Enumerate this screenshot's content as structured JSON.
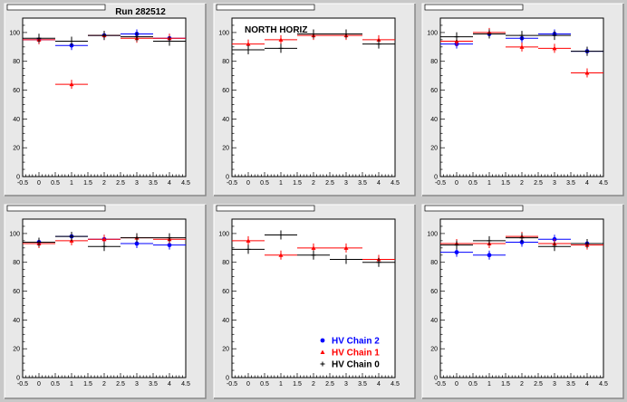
{
  "window": {
    "background": "#c8c8c8",
    "pad_background": "#e8e8e8",
    "frame_background": "#ffffff"
  },
  "legend_entries": [
    {
      "label": "HV Chain 2",
      "color": "#0000ff",
      "marker": "circle"
    },
    {
      "label": "HV Chain 1",
      "color": "#ff0000",
      "marker": "triangle"
    },
    {
      "label": "HV Chain 0",
      "color": "#000000",
      "marker": "cross"
    }
  ],
  "chart_data": [
    {
      "type": "scatter",
      "title": "Run 282512",
      "annotation": "",
      "xlim": [
        -0.5,
        4.5
      ],
      "ylim": [
        0,
        110
      ],
      "x_ticks": [
        "-0.5",
        "0",
        "0.5",
        "1",
        "1.5",
        "2",
        "2.5",
        "3",
        "3.5",
        "4",
        "4.5"
      ],
      "y_ticks": [
        "0",
        "20",
        "40",
        "60",
        "80",
        "100"
      ],
      "series": [
        {
          "name": "HV Chain 2",
          "color": "#0000ff",
          "points": [
            [
              0,
              95
            ],
            [
              1,
              91
            ],
            [
              2,
              98
            ],
            [
              3,
              99
            ],
            [
              4,
              96
            ]
          ]
        },
        {
          "name": "HV Chain 1",
          "color": "#ff0000",
          "points": [
            [
              0,
              95
            ],
            [
              1,
              64
            ],
            [
              2,
              98
            ],
            [
              3,
              96
            ],
            [
              4,
              96
            ]
          ]
        },
        {
          "name": "HV Chain 0",
          "color": "#000000",
          "points": [
            [
              0,
              96
            ],
            [
              1,
              94
            ],
            [
              2,
              98
            ],
            [
              3,
              97
            ],
            [
              4,
              94
            ]
          ]
        }
      ],
      "legend": false
    },
    {
      "type": "scatter",
      "title": "",
      "annotation": "NORTH HORIZ",
      "xlim": [
        -0.5,
        4.5
      ],
      "ylim": [
        0,
        110
      ],
      "x_ticks": [
        "-0.5",
        "0",
        "0.5",
        "1",
        "1.5",
        "2",
        "2.5",
        "3",
        "3.5",
        "4",
        "4.5"
      ],
      "y_ticks": [
        "0",
        "20",
        "40",
        "60",
        "80",
        "100"
      ],
      "series": [
        {
          "name": "HV Chain 2",
          "color": "#0000ff",
          "points": []
        },
        {
          "name": "HV Chain 1",
          "color": "#ff0000",
          "points": [
            [
              0,
              92
            ],
            [
              1,
              95
            ],
            [
              2,
              98
            ],
            [
              3,
              98
            ],
            [
              4,
              95
            ]
          ]
        },
        {
          "name": "HV Chain 0",
          "color": "#000000",
          "points": [
            [
              0,
              88
            ],
            [
              1,
              89
            ],
            [
              2,
              99
            ],
            [
              3,
              99
            ],
            [
              4,
              92
            ]
          ]
        }
      ],
      "legend": false
    },
    {
      "type": "scatter",
      "title": "",
      "annotation": "",
      "xlim": [
        -0.5,
        4.5
      ],
      "ylim": [
        0,
        110
      ],
      "x_ticks": [
        "-0.5",
        "0",
        "0.5",
        "1",
        "1.5",
        "2",
        "2.5",
        "3",
        "3.5",
        "4",
        "4.5"
      ],
      "y_ticks": [
        "0",
        "20",
        "40",
        "60",
        "80",
        "100"
      ],
      "series": [
        {
          "name": "HV Chain 2",
          "color": "#0000ff",
          "points": [
            [
              0,
              92
            ],
            [
              1,
              99
            ],
            [
              2,
              96
            ],
            [
              3,
              99
            ],
            [
              4,
              87
            ]
          ]
        },
        {
          "name": "HV Chain 1",
          "color": "#ff0000",
          "points": [
            [
              0,
              94
            ],
            [
              1,
              100
            ],
            [
              2,
              90
            ],
            [
              3,
              89
            ],
            [
              4,
              72
            ]
          ]
        },
        {
          "name": "HV Chain 0",
          "color": "#000000",
          "points": [
            [
              0,
              97
            ],
            [
              1,
              99
            ],
            [
              2,
              98
            ],
            [
              3,
              98
            ],
            [
              4,
              87
            ]
          ]
        }
      ],
      "legend": false
    },
    {
      "type": "scatter",
      "title": "",
      "annotation": "",
      "xlim": [
        -0.5,
        4.5
      ],
      "ylim": [
        0,
        110
      ],
      "x_ticks": [
        "-0.5",
        "0",
        "0.5",
        "1",
        "1.5",
        "2",
        "2.5",
        "3",
        "3.5",
        "4",
        "4.5"
      ],
      "y_ticks": [
        "0",
        "20",
        "40",
        "60",
        "80",
        "100"
      ],
      "series": [
        {
          "name": "HV Chain 2",
          "color": "#0000ff",
          "points": [
            [
              0,
              94
            ],
            [
              1,
              98
            ],
            [
              2,
              96
            ],
            [
              3,
              93
            ],
            [
              4,
              92
            ]
          ]
        },
        {
          "name": "HV Chain 1",
          "color": "#ff0000",
          "points": [
            [
              0,
              93
            ],
            [
              1,
              95
            ],
            [
              2,
              96
            ],
            [
              3,
              97
            ],
            [
              4,
              96
            ]
          ]
        },
        {
          "name": "HV Chain 0",
          "color": "#000000",
          "points": [
            [
              0,
              94
            ],
            [
              1,
              98
            ],
            [
              2,
              91
            ],
            [
              3,
              97
            ],
            [
              4,
              97
            ]
          ]
        }
      ],
      "legend": false
    },
    {
      "type": "scatter",
      "title": "",
      "annotation": "",
      "xlim": [
        -0.5,
        4.5
      ],
      "ylim": [
        0,
        110
      ],
      "x_ticks": [
        "-0.5",
        "0",
        "0.5",
        "1",
        "1.5",
        "2",
        "2.5",
        "3",
        "3.5",
        "4",
        "4.5"
      ],
      "y_ticks": [
        "0",
        "20",
        "40",
        "60",
        "80",
        "100"
      ],
      "series": [
        {
          "name": "HV Chain 2",
          "color": "#0000ff",
          "points": []
        },
        {
          "name": "HV Chain 1",
          "color": "#ff0000",
          "points": [
            [
              0,
              95
            ],
            [
              1,
              85
            ],
            [
              2,
              90
            ],
            [
              3,
              90
            ],
            [
              4,
              82
            ]
          ]
        },
        {
          "name": "HV Chain 0",
          "color": "#000000",
          "points": [
            [
              0,
              89
            ],
            [
              1,
              99
            ],
            [
              2,
              85
            ],
            [
              3,
              82
            ],
            [
              4,
              80
            ]
          ]
        }
      ],
      "legend": true
    },
    {
      "type": "scatter",
      "title": "",
      "annotation": "",
      "xlim": [
        -0.5,
        4.5
      ],
      "ylim": [
        0,
        110
      ],
      "x_ticks": [
        "-0.5",
        "0",
        "0.5",
        "1",
        "1.5",
        "2",
        "2.5",
        "3",
        "3.5",
        "4",
        "4.5"
      ],
      "y_ticks": [
        "0",
        "20",
        "40",
        "60",
        "80",
        "100"
      ],
      "series": [
        {
          "name": "HV Chain 2",
          "color": "#0000ff",
          "points": [
            [
              0,
              87
            ],
            [
              1,
              85
            ],
            [
              2,
              94
            ],
            [
              3,
              96
            ],
            [
              4,
              93
            ]
          ]
        },
        {
          "name": "HV Chain 1",
          "color": "#ff0000",
          "points": [
            [
              0,
              93
            ],
            [
              1,
              93
            ],
            [
              2,
              98
            ],
            [
              3,
              93
            ],
            [
              4,
              92
            ]
          ]
        },
        {
          "name": "HV Chain 0",
          "color": "#000000",
          "points": [
            [
              0,
              92
            ],
            [
              1,
              95
            ],
            [
              2,
              97
            ],
            [
              3,
              91
            ],
            [
              4,
              93
            ]
          ]
        }
      ],
      "legend": false
    }
  ]
}
